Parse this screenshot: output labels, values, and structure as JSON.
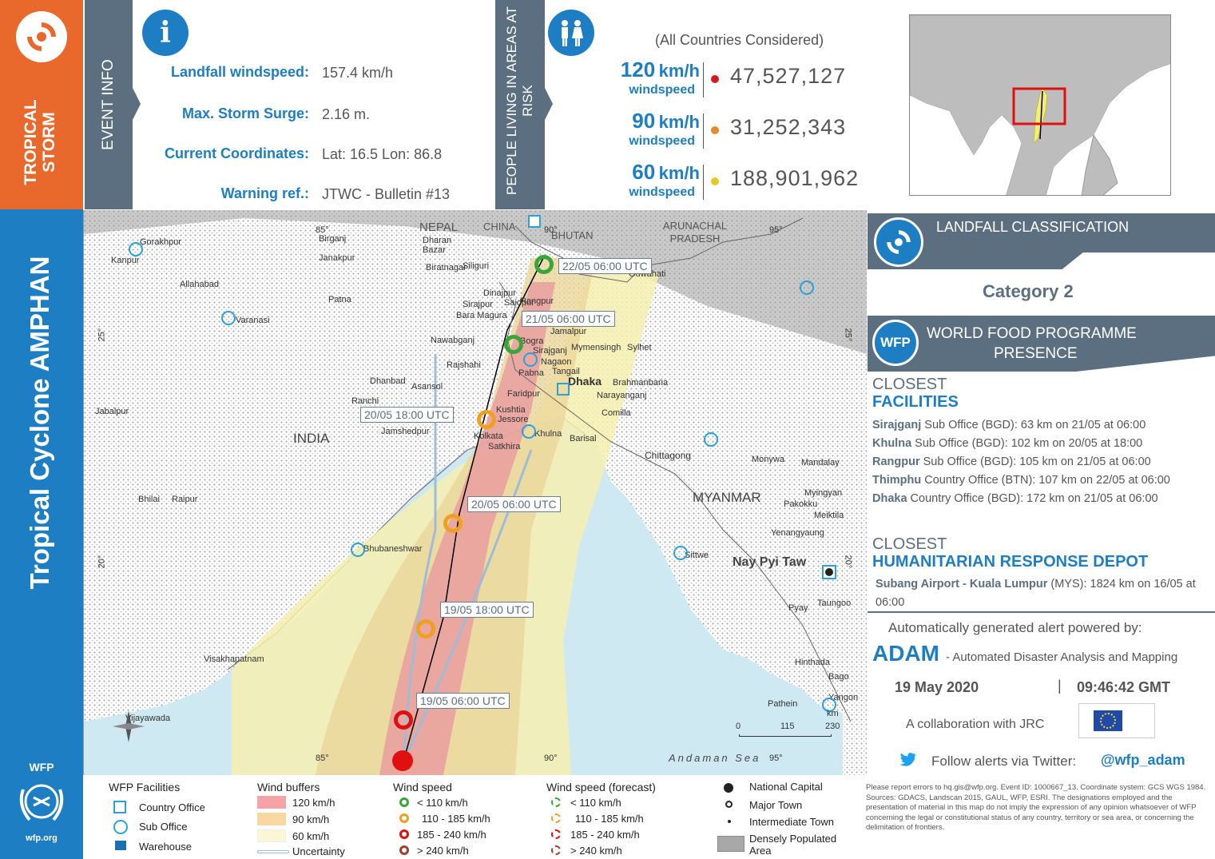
{
  "banner": {
    "event_type": "TROPICAL STORM",
    "event_info_label": "EVENT INFO",
    "people_label": "PEOPLE LIVING IN AREAS AT RISK",
    "cyclone_name": "Tropical Cyclone AMPHAN"
  },
  "event_info": {
    "rows": [
      {
        "label": "Landfall windspeed:",
        "value": "157.4 km/h"
      },
      {
        "label": "Max. Storm Surge:",
        "value": "2.16 m."
      },
      {
        "label": "Current Coordinates:",
        "value": "Lat: 16.5 Lon: 86.8"
      },
      {
        "label": "Warning ref.:",
        "value": "JTWC - Bulletin #13"
      }
    ]
  },
  "people": {
    "note": "(All Countries Considered)",
    "rows": [
      {
        "speed": "120",
        "unit": "km/h",
        "sub": "windspeed",
        "value": "47,527,127",
        "color": "#d7191c"
      },
      {
        "speed": "90",
        "unit": "km/h",
        "sub": "windspeed",
        "value": "31,252,343",
        "color": "#e8892b"
      },
      {
        "speed": "60",
        "unit": "km/h",
        "sub": "windspeed",
        "value": "188,901,962",
        "color": "#e8c72b"
      }
    ]
  },
  "classification": {
    "title": "LANDFALL CLASSIFICATION",
    "value": "Category 2"
  },
  "wfp": {
    "badge": "WFP",
    "title_line1": "WORLD FOOD PROGRAMME",
    "title_line2": "PRESENCE",
    "closest_label": "CLOSEST",
    "facilities_label": "FACILITIES",
    "facilities": [
      {
        "name": "Sirajganj",
        "detail": " Sub Office (BGD): 63 km on 21/05 at 06:00"
      },
      {
        "name": "Khulna",
        "detail": " Sub Office (BGD): 102 km on 20/05 at 18:00"
      },
      {
        "name": "Rangpur",
        "detail": " Sub Office (BGD): 105 km on 21/05 at 06:00"
      },
      {
        "name": "Thimphu",
        "detail": " Country Office (BTN): 107 km on 22/05 at 06:00"
      },
      {
        "name": "Dhaka",
        "detail": " Country Office (BGD): 172 km on 21/05 at 06:00"
      }
    ],
    "depot_closest": "CLOSEST",
    "depot_label": "HUMANITARIAN RESPONSE DEPOT",
    "depot_name": "Subang Airport - Kuala Lumpur",
    "depot_detail": " (MYS): 1824 km on 16/05 at 06:00"
  },
  "alert": {
    "powered": "Automatically generated alert powered by:",
    "adam": "ADAM",
    "adam_desc": "- Automated Disaster Analysis and Mapping",
    "date": "19 May 2020",
    "sep": "|",
    "time": "09:46:42 GMT",
    "collab": "A collaboration with JRC",
    "follow": "Follow alerts via Twitter:",
    "handle": "@wfp_adam"
  },
  "map": {
    "countries": [
      "NEPAL",
      "CHINA",
      "BHUTAN",
      "ARUNACHAL PRADESH",
      "INDIA",
      "MYANMAR"
    ],
    "capital": "Nay Pyi Taw",
    "sea": "Andaman Sea",
    "dhaka": "Dhaka",
    "lon_labels": [
      "85°",
      "90°",
      "95°",
      "85°",
      "90°",
      "95°"
    ],
    "lat_labels": [
      "25°",
      "20°",
      "25°",
      "20°"
    ],
    "scale": [
      "0",
      "115",
      "230"
    ],
    "scale_unit": "km",
    "track_labels": [
      "22/05 06:00 UTC",
      "21/05 06:00 UTC",
      "20/05 18:00 UTC",
      "20/05 06:00 UTC",
      "19/05 18:00 UTC",
      "19/05 06:00 UTC"
    ],
    "towns": [
      "Gorakhpur",
      "Kanpur",
      "Allahabad",
      "Varanasi",
      "Patna",
      "Dhanbad",
      "Asansol",
      "Ranchi",
      "Jamshedpur",
      "Jabalpur",
      "Bhilai",
      "Raipur",
      "Bhubaneshwar",
      "Visakhapatnam",
      "Vijayawada",
      "Birganj",
      "Janakpur",
      "Siliguri",
      "Dharan Bazar",
      "Biratnagar",
      "Rangpur",
      "Bogra",
      "Sirajganj",
      "Rajshahi",
      "Nawabganj",
      "Mymensingh",
      "Sylhet",
      "Pabna",
      "Tangail",
      "Faridpur",
      "Kushtia",
      "Jessore",
      "Khulna",
      "Satkhira",
      "Kolkata",
      "Barisal",
      "Brahmanbaria",
      "Narayanganj",
      "Comilla",
      "Chittagong",
      "Sittwe",
      "Monywa",
      "Mandalay",
      "Myingyan",
      "Pakokku",
      "Meiktila",
      "Yenangyaung",
      "Taungoo",
      "Pyay",
      "Hinthada",
      "Bago",
      "Yangon",
      "Pathein",
      "Guwahati",
      "Saidpur",
      "Dinajpur",
      "Bara Magura",
      "Jamalpur",
      "Nagaon",
      "Sirajpur"
    ]
  },
  "legend": {
    "facilities_title": "WFP Facilities",
    "facilities": [
      "Country Office",
      "Sub Office",
      "Warehouse"
    ],
    "buffers_title": "Wind buffers",
    "buffers": [
      {
        "label": "120 km/h",
        "color": "#f4a3a8"
      },
      {
        "label": "90 km/h",
        "color": "#f8d8a0"
      },
      {
        "label": "60 km/h",
        "color": "#fbf7d6"
      }
    ],
    "uncertainty": "Uncertainty",
    "speed_title": "Wind speed",
    "speed_forecast_title": "Wind speed (forecast)",
    "speeds": [
      {
        "label": "< 110 km/h",
        "color": "#3aa63a"
      },
      {
        "label": "110 - 185 km/h",
        "color": "#f0a020"
      },
      {
        "label": "185 - 240 km/h",
        "color": "#e01010"
      },
      {
        "label": "> 240 km/h",
        "color": "#a04030"
      }
    ],
    "places": [
      "National Capital",
      "Major Town",
      "Intermediate Town",
      "Densely Populated Area"
    ]
  },
  "footer": {
    "wfp_logo": "WFP",
    "wfp_url": "wfp.org",
    "disclaimer": "Please report errors to hq.gis@wfp.org. Event ID: 1000667_13. Coordinate system: GCS WGS 1984. Sources: GDACS, Landscan 2015, GAUL, WFP, ESRI. The designations employed and the presentation of material in this map do not imply the expression of any opinion whatsoever of WFP concerning the legal or constitutional status of any country, territory or sea area, or concerning the delimitation of frontiers."
  }
}
